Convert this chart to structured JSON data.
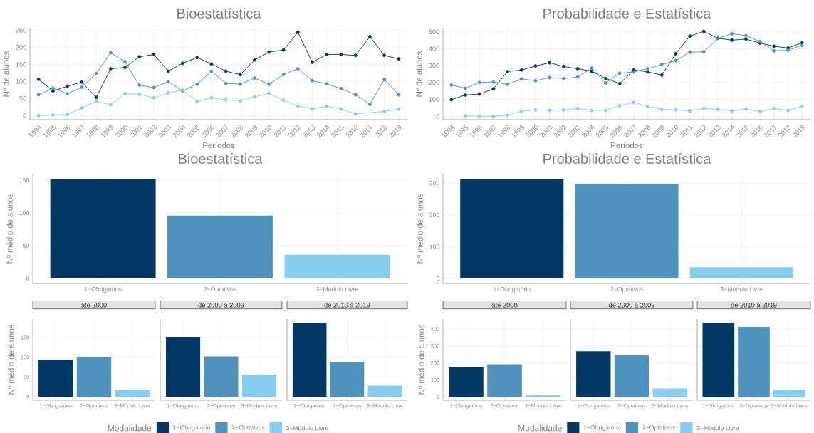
{
  "chart_data": [
    {
      "type": "line",
      "title": "Bioestatística",
      "xlabel": "Períodos",
      "ylabel": "Nº de alunos",
      "categories": [
        "1994",
        "1995",
        "1996",
        "1997",
        "1998",
        "1999",
        "2000",
        "2001",
        "2002",
        "2003",
        "2004",
        "2005",
        "2006",
        "2007",
        "2008",
        "2009",
        "2010",
        "2011",
        "2012",
        "2013",
        "2014",
        "2015",
        "2016",
        "2017",
        "2018",
        "2019"
      ],
      "ylim": [
        -12,
        255
      ],
      "yticks": [
        0,
        50,
        100,
        150,
        200,
        250
      ],
      "grid": true,
      "marker": "circle",
      "series": [
        {
          "color": "#023866",
          "values": [
            106,
            72,
            86,
            98,
            53,
            137,
            141,
            172,
            179,
            130,
            153,
            170,
            151,
            130,
            120,
            163,
            186,
            192,
            244,
            156,
            179,
            179,
            176,
            231,
            176,
            166
          ]
        },
        {
          "color": "#4f92bd",
          "values": [
            61,
            80,
            64,
            83,
            123,
            184,
            158,
            89,
            82,
            99,
            72,
            92,
            130,
            94,
            92,
            110,
            92,
            120,
            137,
            102,
            93,
            79,
            61,
            33,
            106,
            61
          ]
        },
        {
          "color": "#87cdf0",
          "values": [
            0,
            2,
            3,
            22,
            41,
            32,
            64,
            62,
            52,
            66,
            75,
            41,
            52,
            46,
            43,
            55,
            65,
            45,
            28,
            19,
            27,
            19,
            5,
            null,
            12,
            19
          ]
        }
      ]
    },
    {
      "type": "line",
      "title": "Probabilidade e Estatística",
      "xlabel": "Períodos",
      "ylabel": "Nº de alunos",
      "categories": [
        "1994",
        "1995",
        "1996",
        "1997",
        "1998",
        "1999",
        "2000",
        "2001",
        "2002",
        "2003",
        "2004",
        "2005",
        "2006",
        "2007",
        "2008",
        "2009",
        "2010",
        "2011",
        "2012",
        "2013",
        "2014",
        "2015",
        "2016",
        "2017",
        "2018",
        "2019"
      ],
      "ylim": [
        -20,
        520
      ],
      "yticks": [
        0,
        100,
        200,
        300,
        400,
        500
      ],
      "grid": true,
      "marker": "circle",
      "series": [
        {
          "color": "#023866",
          "values": [
            98,
            126,
            132,
            162,
            265,
            274,
            298,
            317,
            295,
            282,
            267,
            224,
            194,
            274,
            263,
            244,
            371,
            475,
            503,
            462,
            451,
            457,
            434,
            415,
            404,
            435
          ]
        },
        {
          "color": "#4f92bd",
          "values": [
            185,
            166,
            200,
            203,
            189,
            221,
            211,
            229,
            224,
            232,
            285,
            196,
            255,
            263,
            282,
            306,
            330,
            380,
            382,
            461,
            489,
            478,
            443,
            388,
            391,
            420
          ]
        },
        {
          "color": "#87cdf0",
          "values": [
            null,
            2,
            0,
            0,
            6,
            30,
            38,
            35,
            38,
            46,
            35,
            35,
            63,
            82,
            58,
            41,
            38,
            32,
            46,
            41,
            32,
            43,
            28,
            46,
            35,
            57
          ]
        }
      ]
    },
    {
      "type": "bar",
      "title": "Bioestatística",
      "ylabel": "Nº médio de alunos",
      "categories": [
        "1−Obrigatório",
        "2−Optativos",
        "3−Módulo Livre"
      ],
      "values": [
        152,
        96,
        36
      ],
      "colors": [
        "#023866",
        "#4f92bd",
        "#87cdf0"
      ],
      "ylim": [
        -8,
        160
      ],
      "yticks": [
        0,
        50,
        100,
        150
      ],
      "grid": true
    },
    {
      "type": "bar",
      "title": "Probabilidade e Estatística",
      "ylabel": "Nº médio de alunos",
      "categories": [
        "1−Obrigatório",
        "2−Optativos",
        "3−Módulo Livre"
      ],
      "values": [
        313,
        298,
        35
      ],
      "colors": [
        "#023866",
        "#4f92bd",
        "#87cdf0"
      ],
      "ylim": [
        -16,
        330
      ],
      "yticks": [
        0,
        100,
        200,
        300
      ],
      "grid": true
    },
    {
      "type": "bar",
      "title": "até 2000",
      "ylabel": "Nº médio de alunos",
      "categories": [
        "1−Obrigatório",
        "2−Optativos",
        "3−Módulo Livre"
      ],
      "values": [
        94,
        101,
        17
      ],
      "colors": [
        "#023866",
        "#4f92bd",
        "#87cdf0"
      ],
      "ylim": [
        -9,
        197
      ],
      "yticks": [
        0,
        50,
        100,
        150
      ],
      "grid": true
    },
    {
      "type": "bar",
      "title": "de 2000 à 2009",
      "categories": [
        "1−Obrigatório",
        "2−Optativos",
        "3−Módulo Livre"
      ],
      "series": [
        {
          "name": "1−Obrigatório",
          "color": "#023866",
          "values": [
            152,
            null,
            null
          ]
        },
        {
          "name": "2−Optativos",
          "color": "#4f92bd",
          "values": [
            null,
            102,
            null
          ]
        },
        {
          "name": "3−Módulo Livre",
          "color": "#87cdf0",
          "values": [
            null,
            null,
            56
          ]
        }
      ],
      "ylim": [
        -9,
        197
      ],
      "yticks": [
        0,
        50,
        100,
        150
      ],
      "grid": true,
      "tick_labels": "x",
      "legend": "bottom",
      "legend_title": "Modalidade"
    },
    {
      "type": "bar",
      "title": "de 2010 à 2019",
      "categories": [
        "1−Obrigatório",
        "2−Optativos",
        "3−Módulo Livre"
      ],
      "values": [
        188,
        88,
        28
      ],
      "colors": [
        "#023866",
        "#4f92bd",
        "#87cdf0"
      ],
      "ylim": [
        -9,
        197
      ],
      "yticks": [
        0,
        50,
        100,
        150
      ],
      "grid": true,
      "tick_labels": "x"
    },
    {
      "type": "bar",
      "title": "até 2000",
      "ylabel": "Nº médio de alunos",
      "categories": [
        "1−Obrigatório",
        "2−Optativos",
        "3−Módulo Livre"
      ],
      "values": [
        177,
        193,
        9
      ],
      "colors": [
        "#023866",
        "#4f92bd",
        "#87cdf0"
      ],
      "ylim": [
        -20,
        460
      ],
      "yticks": [
        0,
        100,
        200,
        300,
        400
      ],
      "grid": true
    },
    {
      "type": "bar",
      "title": "de 2000 à 2009",
      "categories": [
        "1−Obrigatório",
        "2−Optativos",
        "3−Módulo Livre"
      ],
      "series": [
        {
          "name": "1−Obrigatório",
          "color": "#023866",
          "values": [
            269,
            null,
            null
          ]
        },
        {
          "name": "2−Optativos",
          "color": "#4f92bd",
          "values": [
            null,
            246,
            null
          ]
        },
        {
          "name": "3−Módulo Livre",
          "color": "#87cdf0",
          "values": [
            null,
            null,
            50
          ]
        }
      ],
      "ylim": [
        -20,
        460
      ],
      "yticks": [
        0,
        100,
        200,
        300,
        400
      ],
      "grid": true,
      "tick_labels": "x",
      "legend": "bottom",
      "legend_title": "Modalidade"
    },
    {
      "type": "bar",
      "title": "de 2010 à 2019",
      "categories": [
        "1−Obrigatório",
        "2−Optativos",
        "3−Módulo Livre"
      ],
      "values": [
        439,
        414,
        42
      ],
      "colors": [
        "#023866",
        "#4f92bd",
        "#87cdf0"
      ],
      "ylim": [
        -20,
        460
      ],
      "yticks": [
        0,
        100,
        200,
        300,
        400
      ],
      "grid": true,
      "tick_labels": "x"
    }
  ]
}
